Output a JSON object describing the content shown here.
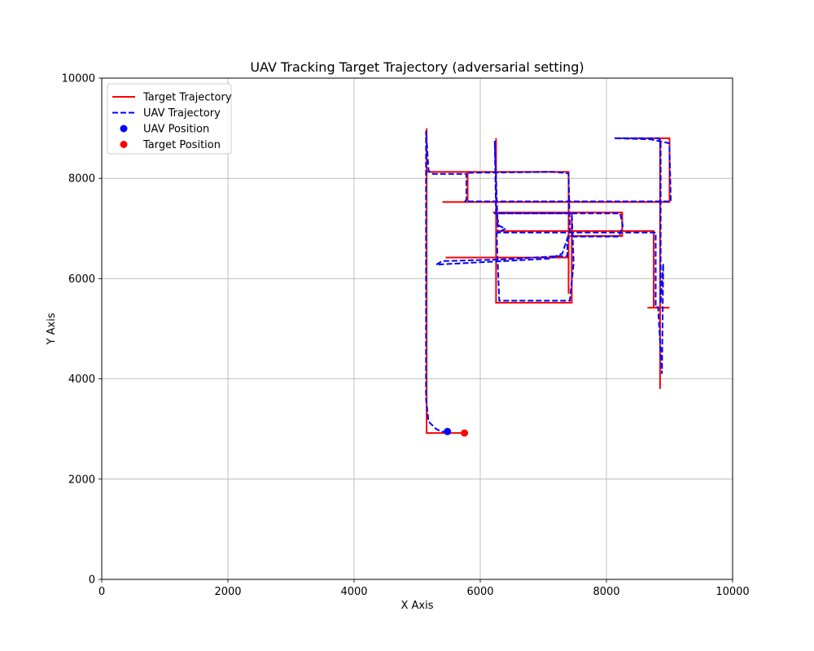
{
  "chart_data": {
    "type": "line",
    "title": "UAV Tracking Target Trajectory (adversarial setting)",
    "xlabel": "X Axis",
    "ylabel": "Y Axis",
    "xlim": [
      0,
      10000
    ],
    "ylim": [
      0,
      10000
    ],
    "xticks": [
      0,
      2000,
      4000,
      6000,
      8000,
      10000
    ],
    "yticks": [
      0,
      2000,
      4000,
      6000,
      8000,
      10000
    ],
    "grid": true,
    "legend_location": "upper-left",
    "series": [
      {
        "name": "Target Trajectory",
        "kind": "line",
        "style": "solid",
        "color": "#ff0000",
        "points": [
          [
            5750,
            2920
          ],
          [
            5150,
            2920
          ],
          [
            5150,
            9000
          ],
          [
            5150,
            8130
          ],
          [
            5800,
            8130
          ],
          [
            5800,
            7530
          ],
          [
            5400,
            7530
          ],
          [
            9000,
            7530
          ],
          [
            9000,
            8800
          ],
          [
            8150,
            8800
          ],
          [
            8850,
            8800
          ],
          [
            8850,
            3800
          ],
          [
            8850,
            5420
          ],
          [
            8650,
            5420
          ],
          [
            9000,
            5420
          ],
          [
            8750,
            5420
          ],
          [
            8750,
            6950
          ],
          [
            6250,
            6950
          ],
          [
            6250,
            8800
          ],
          [
            6250,
            5520
          ],
          [
            7450,
            5520
          ],
          [
            7450,
            7320
          ],
          [
            6200,
            7320
          ],
          [
            8250,
            7320
          ],
          [
            8250,
            6850
          ],
          [
            7400,
            6850
          ],
          [
            7400,
            5700
          ],
          [
            7400,
            6420
          ],
          [
            5450,
            6420
          ],
          [
            7400,
            6420
          ],
          [
            7400,
            8130
          ],
          [
            7200,
            8130
          ],
          [
            5800,
            8130
          ]
        ]
      },
      {
        "name": "UAV Trajectory",
        "kind": "line",
        "style": "dashed",
        "color": "#0000ff",
        "points": [
          [
            5480,
            2940
          ],
          [
            5380,
            2950
          ],
          [
            5300,
            3000
          ],
          [
            5180,
            3150
          ],
          [
            5140,
            3600
          ],
          [
            5140,
            8950
          ],
          [
            5180,
            8150
          ],
          [
            5250,
            8090
          ],
          [
            5780,
            8090
          ],
          [
            5780,
            7580
          ],
          [
            5760,
            7540
          ],
          [
            9020,
            7540
          ],
          [
            9000,
            8550
          ],
          [
            9000,
            8700
          ],
          [
            8700,
            8780
          ],
          [
            8120,
            8800
          ],
          [
            8830,
            8800
          ],
          [
            8860,
            8700
          ],
          [
            8860,
            5500
          ],
          [
            8900,
            6300
          ],
          [
            8880,
            4100
          ],
          [
            8820,
            5430
          ],
          [
            8780,
            5430
          ],
          [
            8780,
            6920
          ],
          [
            6280,
            6920
          ],
          [
            6230,
            8750
          ],
          [
            6250,
            7300
          ],
          [
            6300,
            7050
          ],
          [
            6400,
            7000
          ],
          [
            6260,
            6900
          ],
          [
            6300,
            5560
          ],
          [
            7420,
            5560
          ],
          [
            7480,
            6300
          ],
          [
            7450,
            7300
          ],
          [
            6220,
            7300
          ],
          [
            8220,
            7300
          ],
          [
            8260,
            7050
          ],
          [
            8200,
            6840
          ],
          [
            7450,
            6840
          ],
          [
            7380,
            6800
          ],
          [
            7380,
            6450
          ],
          [
            7250,
            6450
          ],
          [
            6300,
            6380
          ],
          [
            5400,
            6350
          ],
          [
            5300,
            6280
          ],
          [
            7100,
            6400
          ],
          [
            7300,
            6500
          ],
          [
            7420,
            6950
          ],
          [
            7400,
            8100
          ],
          [
            7150,
            8130
          ],
          [
            5780,
            8110
          ]
        ]
      },
      {
        "name": "UAV Position",
        "kind": "marker",
        "color": "#0000ff",
        "point": [
          5480,
          2950
        ]
      },
      {
        "name": "Target Position",
        "kind": "marker",
        "color": "#ff0000",
        "point": [
          5750,
          2920
        ]
      }
    ]
  }
}
